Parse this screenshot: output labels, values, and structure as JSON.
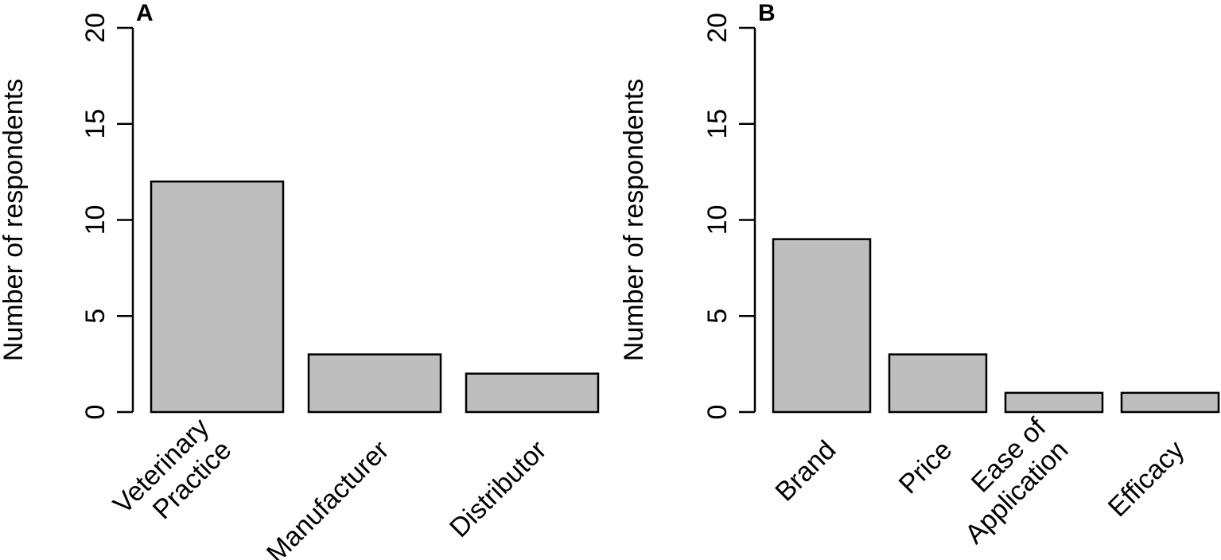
{
  "chart_data": [
    {
      "type": "bar",
      "panel_label": "A",
      "title": "",
      "xlabel": "",
      "ylabel": "Number of respondents",
      "ylim": [
        0,
        20
      ],
      "yticks": [
        0,
        5,
        10,
        15,
        20
      ],
      "categories": [
        [
          "Veterinary",
          "Practice"
        ],
        [
          "Manufacturer"
        ],
        [
          "Distributor"
        ]
      ],
      "values": [
        12,
        3,
        2
      ],
      "bar_color": "#bebebe",
      "grid": false,
      "legend": "none"
    },
    {
      "type": "bar",
      "panel_label": "B",
      "title": "",
      "xlabel": "",
      "ylabel": "Number of respondents",
      "ylim": [
        0,
        20
      ],
      "yticks": [
        0,
        5,
        10,
        15,
        20
      ],
      "categories": [
        [
          "Brand"
        ],
        [
          "Price"
        ],
        [
          "Ease of",
          "Application"
        ],
        [
          "Efficacy"
        ]
      ],
      "values": [
        9,
        3,
        1,
        1
      ],
      "bar_color": "#bebebe",
      "grid": false,
      "legend": "none"
    }
  ]
}
